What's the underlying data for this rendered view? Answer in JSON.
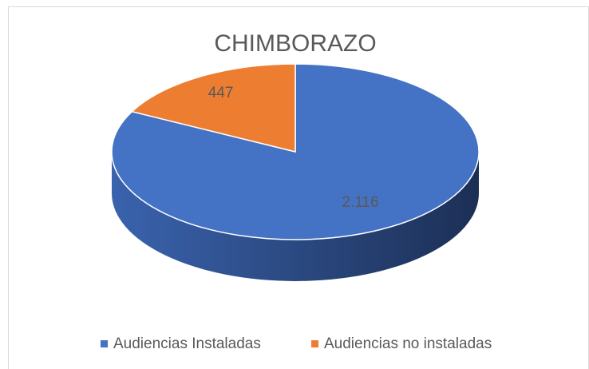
{
  "chart_data": {
    "type": "pie",
    "title": "CHIMBORAZO",
    "categories": [
      "Audiencias Instaladas",
      "Audiencias no instaladas"
    ],
    "values": [
      2116,
      447
    ],
    "value_labels": [
      "2.116",
      "447"
    ],
    "colors": [
      "#4472c4",
      "#ed7d31"
    ],
    "legend": "bottom",
    "three_d": true
  }
}
